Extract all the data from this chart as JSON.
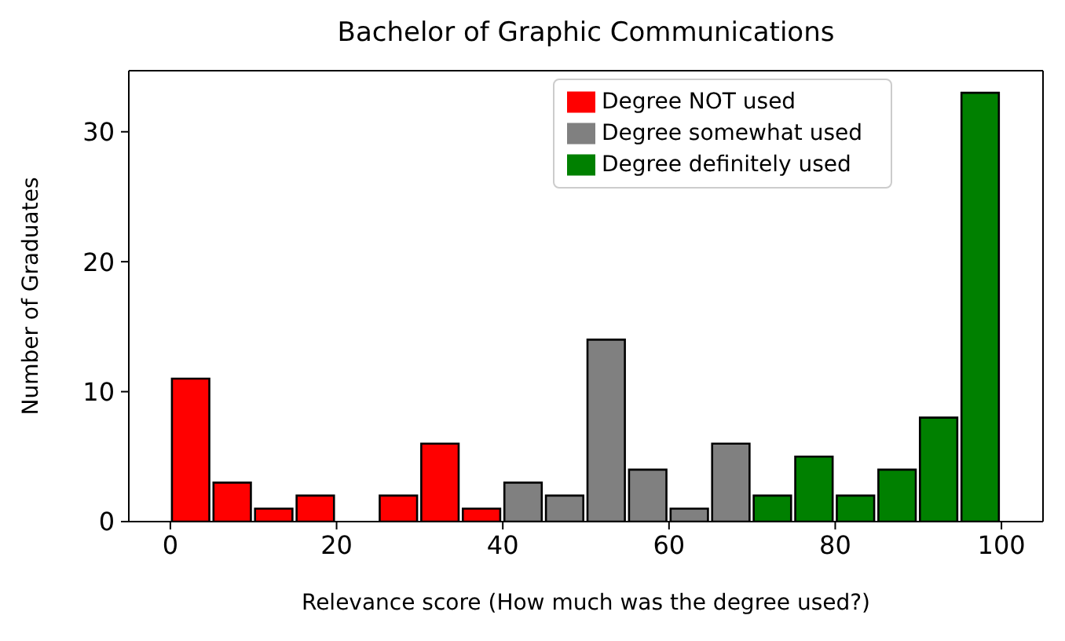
{
  "chart_data": {
    "type": "histogram",
    "title": "Bachelor of Graphic Communications",
    "xlabel": "Relevance score (How much was the degree used?)",
    "ylabel": "Number of Graduates",
    "bins": [
      0,
      5,
      10,
      15,
      20,
      25,
      30,
      35,
      40,
      45,
      50,
      55,
      60,
      65,
      70,
      75,
      80,
      85,
      90,
      95,
      100
    ],
    "series": [
      {
        "name": "Degree NOT used",
        "color": "#ff0000",
        "values": [
          11,
          3,
          1,
          2,
          0,
          2,
          6,
          1,
          null,
          null,
          null,
          null,
          null,
          null,
          null,
          null,
          null,
          null,
          null,
          null
        ]
      },
      {
        "name": "Degree somewhat used",
        "color": "#808080",
        "values": [
          null,
          null,
          null,
          null,
          null,
          null,
          null,
          null,
          3,
          2,
          14,
          4,
          1,
          6,
          null,
          null,
          null,
          null,
          null,
          null
        ]
      },
      {
        "name": "Degree definitely used",
        "color": "#008000",
        "values": [
          null,
          null,
          null,
          null,
          null,
          null,
          null,
          null,
          null,
          null,
          null,
          null,
          null,
          null,
          2,
          5,
          2,
          4,
          8,
          33
        ]
      }
    ],
    "xlim": [
      -5,
      105
    ],
    "xticks": [
      0,
      20,
      40,
      60,
      80,
      100
    ],
    "ylim": [
      0,
      34.7
    ],
    "yticks": [
      0,
      10,
      20,
      30
    ],
    "legend": "top right"
  }
}
